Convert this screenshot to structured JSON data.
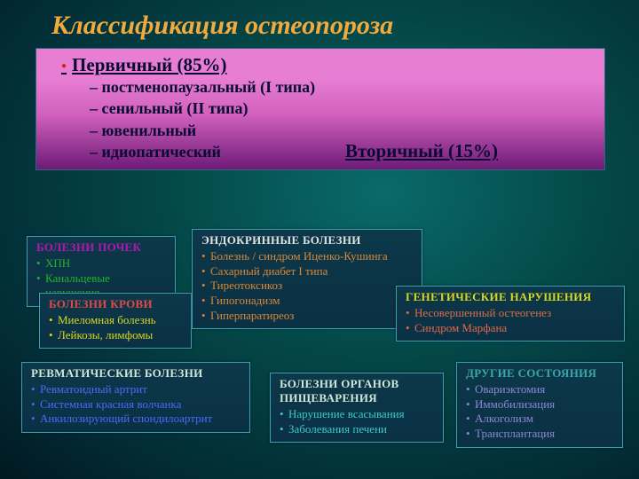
{
  "title": "Классификация остеопороза",
  "primary": {
    "label": "Первичный (85%)",
    "items": [
      "постменопаузальный (I типа)",
      "сенильный (II типа)",
      "ювенильный",
      "идиопатический"
    ]
  },
  "secondary_label": "Вторичный (15%)",
  "cards": {
    "kidney": {
      "title": "БОЛЕЗНИ ПОЧЕК",
      "items": [
        "ХПН",
        "Канальцевые нарушения"
      ]
    },
    "blood": {
      "title": "БОЛЕЗНИ КРОВИ",
      "items": [
        "Миеломная болезнь",
        "Лейкозы, лимфомы"
      ]
    },
    "endo": {
      "title": "ЭНДОКРИННЫЕ БОЛЕЗНИ",
      "items": [
        "Болезнь / синдром Иценко-Кушинга",
        "Сахарный диабет I типа",
        "Тиреотоксикоз",
        "Гипогонадизм",
        "Гиперпаратиреоз"
      ]
    },
    "genet": {
      "title": "ГЕНЕТИЧЕСКИЕ НАРУШЕНИЯ",
      "items": [
        "Несовершенный остеогенез",
        "Синдром Марфана"
      ]
    },
    "rheum": {
      "title": "РЕВМАТИЧЕСКИЕ БОЛЕЗНИ",
      "items": [
        "Ревматоидный артрит",
        "Системная красная волчанка",
        "Анкилозирующий спондилоартрит"
      ]
    },
    "digest": {
      "title": "БОЛЕЗНИ ОРГАНОВ ПИЩЕВАРЕНИЯ",
      "items": [
        "Нарушение всасывания",
        "Заболевания печени"
      ]
    },
    "other": {
      "title": "ДРУГИЕ СОСТОЯНИЯ",
      "items": [
        "Овариэктомия",
        "Иммобилизация",
        "Алкоголизм",
        "Трансплантация"
      ]
    }
  }
}
